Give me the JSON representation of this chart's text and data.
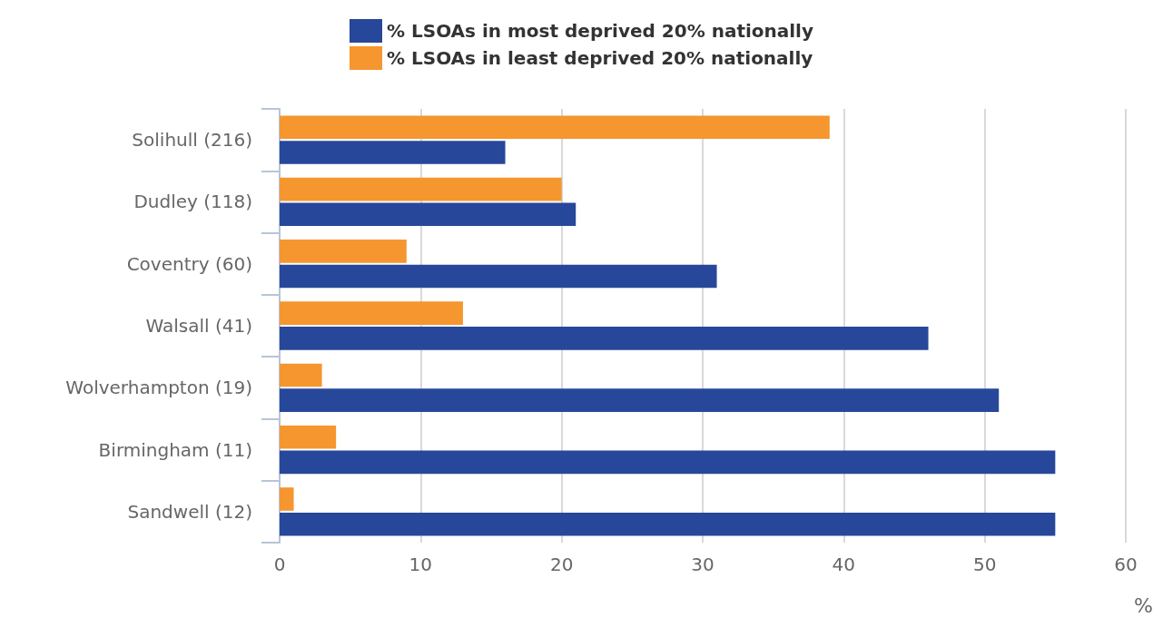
{
  "chart_data": {
    "type": "bar",
    "orientation": "horizontal",
    "categories": [
      "Solihull (216)",
      "Dudley (118)",
      "Coventry (60)",
      "Walsall (41)",
      "Wolverhampton (19)",
      "Birmingham (11)",
      "Sandwell (12)"
    ],
    "series": [
      {
        "name": "% LSOAs in most deprived 20% nationally",
        "color": "#27479a",
        "values": [
          16,
          21,
          31,
          46,
          51,
          55,
          55
        ]
      },
      {
        "name": "% LSOAs in least deprived 20% nationally",
        "color": "#f5962f",
        "values": [
          39,
          20,
          9,
          13,
          3,
          4,
          1
        ]
      }
    ],
    "xlabel": "%",
    "xlim": [
      0,
      60
    ],
    "xticks": [
      0,
      10,
      20,
      30,
      40,
      50,
      60
    ],
    "grid": "x",
    "legend": "top"
  }
}
